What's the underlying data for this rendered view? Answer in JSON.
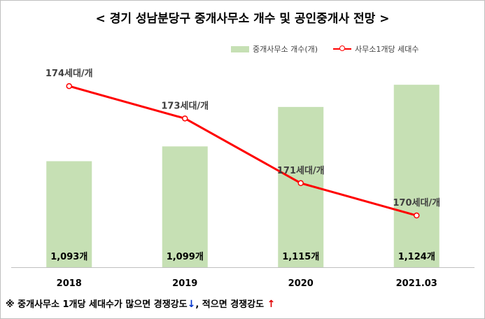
{
  "chart_data": {
    "type": "bar+line",
    "title": "< 경기 성남분당구 중개사무소 개수 및 공인중개사 전망 >",
    "categories": [
      "2018",
      "2019",
      "2020",
      "2021.03"
    ],
    "series": [
      {
        "name": "중개사무소 개수(개)",
        "type": "bar",
        "color": "#c6e0b4",
        "values": [
          1093,
          1099,
          1115,
          1124
        ],
        "labels": [
          "1,093개",
          "1,099개",
          "1,115개",
          "1,124개"
        ],
        "range": [
          1050,
          1130
        ]
      },
      {
        "name": "사무소1개당 세대수",
        "type": "line",
        "color": "#ff0000",
        "values": [
          174,
          173,
          171,
          170
        ],
        "labels": [
          "174세대/개",
          "173세대/개",
          "171세대/개",
          "170세대/개"
        ],
        "range": [
          168.4,
          174.5
        ]
      }
    ],
    "grid": false,
    "legend_position": "top-right"
  },
  "footnote": {
    "lead": "※ 중개사무소 1개당 세대수가 많으면 경쟁강도",
    "down_arrow": "↓",
    "mid": ", 적으면 경쟁강도 ",
    "up_arrow": "↑"
  }
}
